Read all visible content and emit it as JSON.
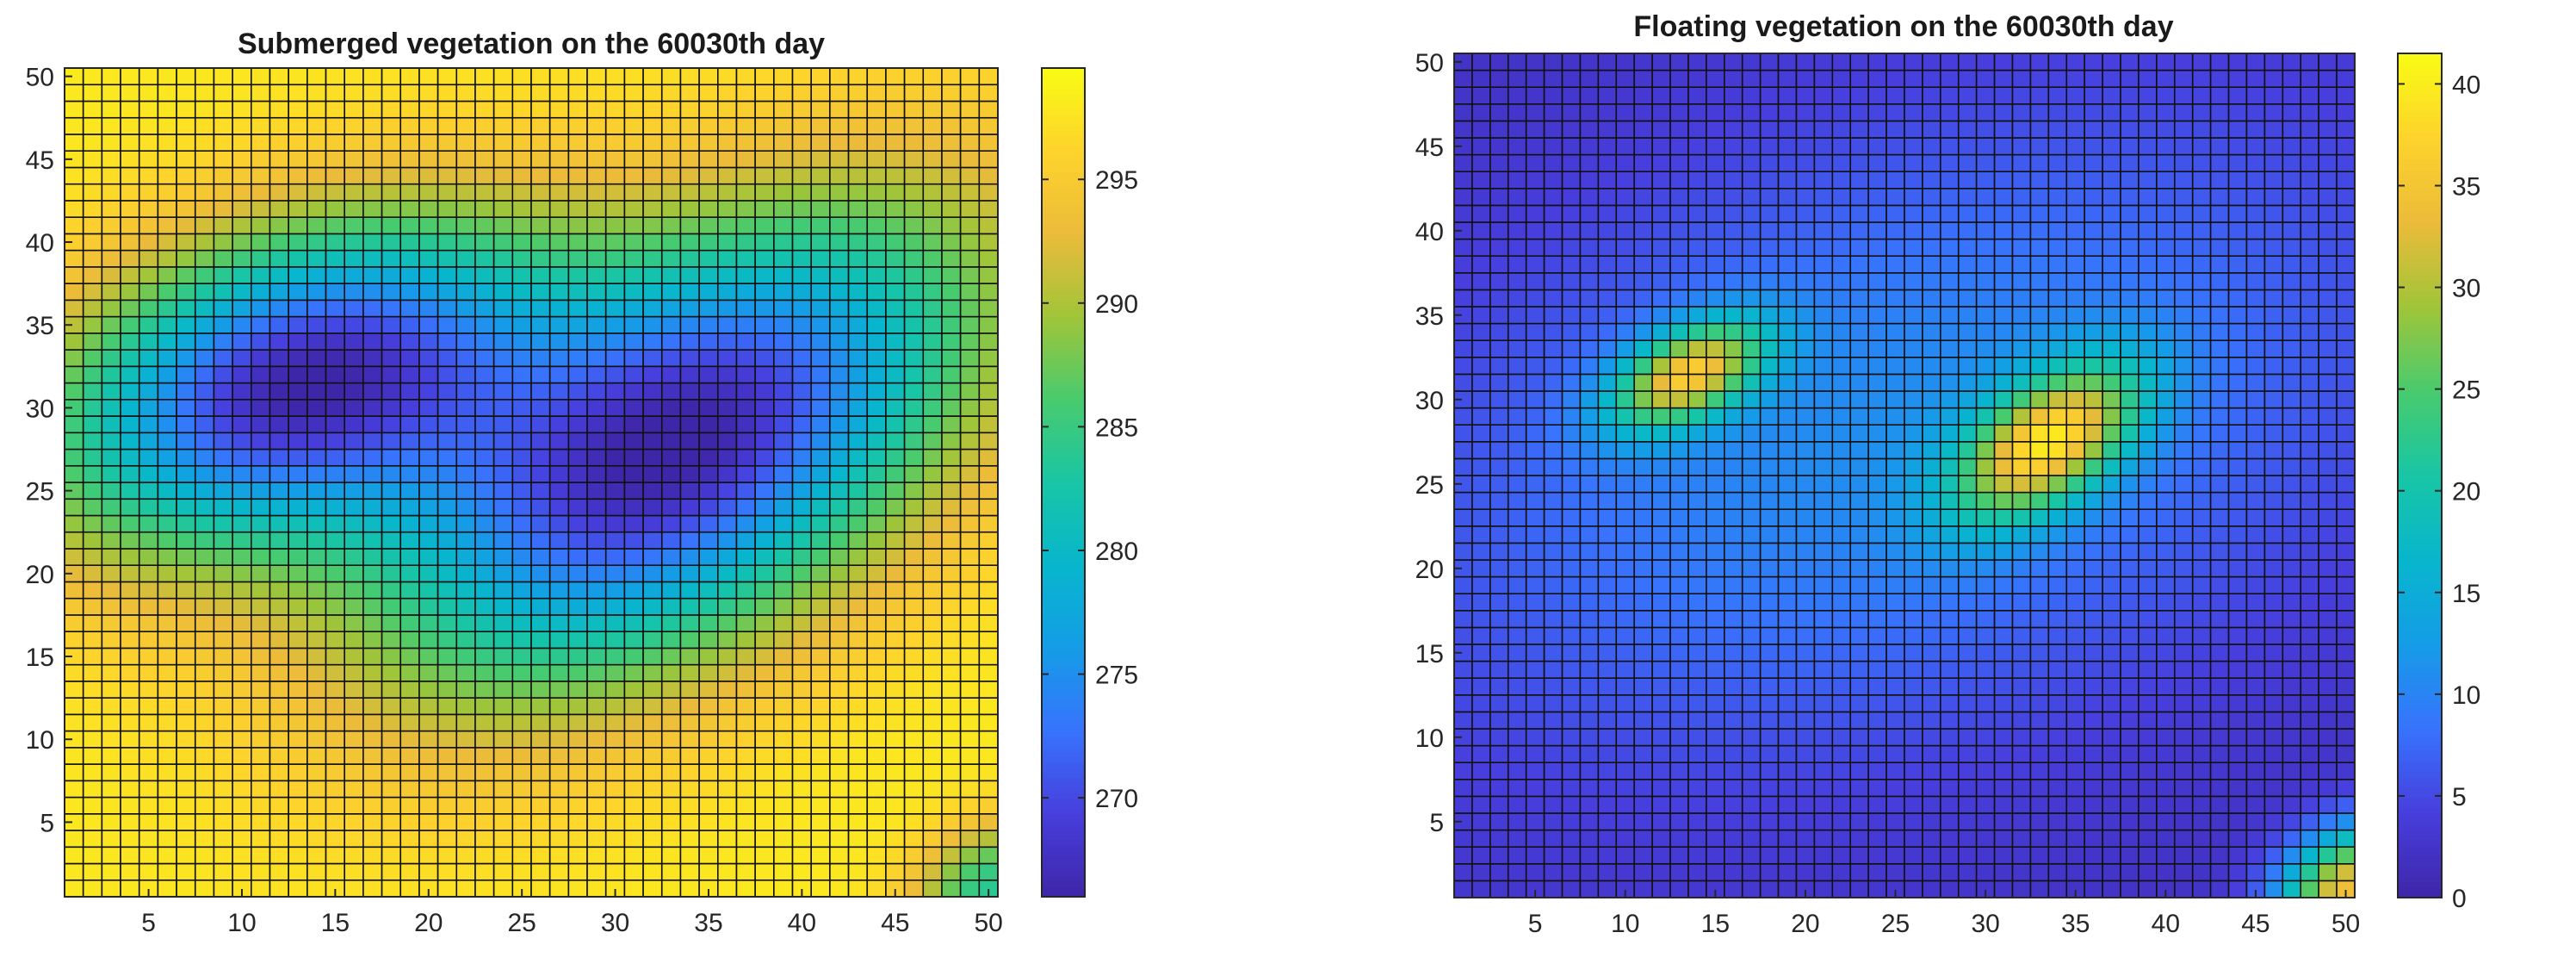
{
  "chart_data": [
    {
      "type": "heatmap",
      "title": "Submerged vegetation on the 60030th day",
      "xlabel": "",
      "ylabel": "",
      "xlim": [
        0.5,
        50.5
      ],
      "ylim": [
        0.5,
        50.5
      ],
      "grid_size": 50,
      "xticks": [
        5,
        10,
        15,
        20,
        25,
        30,
        35,
        40,
        45,
        50
      ],
      "yticks": [
        5,
        10,
        15,
        20,
        25,
        30,
        35,
        40,
        45,
        50
      ],
      "colorbar": {
        "min": 266,
        "max": 299.5,
        "ticks": [
          270,
          275,
          280,
          285,
          290,
          295
        ],
        "colormap": "parula"
      },
      "field_model": {
        "base": 298,
        "features": [
          {
            "cx": 13,
            "cy": 31.5,
            "amplitude": -31,
            "sigma_major": 9.5,
            "sigma_minor": 6.0,
            "angle_deg": 25
          },
          {
            "cx": 33.5,
            "cy": 27.5,
            "amplitude": -32,
            "sigma_major": 12.5,
            "sigma_minor": 7.0,
            "angle_deg": 40
          },
          {
            "cx": 50,
            "cy": 1,
            "amplitude": -14,
            "sigma_major": 3.2,
            "sigma_minor": 2.4,
            "angle_deg": 45
          }
        ],
        "clip": [
          266,
          299.5
        ]
      }
    },
    {
      "type": "heatmap",
      "title": "Floating vegetation on the 60030th day",
      "xlabel": "",
      "ylabel": "",
      "xlim": [
        0.5,
        50.5
      ],
      "ylim": [
        0.5,
        50.5
      ],
      "grid_size": 50,
      "xticks": [
        5,
        10,
        15,
        20,
        25,
        30,
        35,
        40,
        45,
        50
      ],
      "yticks": [
        5,
        10,
        15,
        20,
        25,
        30,
        35,
        40,
        45,
        50
      ],
      "colorbar": {
        "min": 0,
        "max": 41.5,
        "ticks": [
          0,
          5,
          10,
          15,
          20,
          25,
          30,
          35,
          40
        ],
        "colormap": "parula"
      },
      "field_model": {
        "base": 2,
        "features": [
          {
            "cx": 25,
            "cy": 28,
            "amplitude": 9,
            "sigma_major": 20,
            "sigma_minor": 12,
            "angle_deg": 20
          },
          {
            "cx": 13.5,
            "cy": 31.5,
            "amplitude": 28,
            "sigma_major": 3.3,
            "sigma_minor": 1.8,
            "angle_deg": 30
          },
          {
            "cx": 33.5,
            "cy": 27.5,
            "amplitude": 30,
            "sigma_major": 4.2,
            "sigma_minor": 2.3,
            "angle_deg": 40
          },
          {
            "cx": 50,
            "cy": 1,
            "amplitude": 32,
            "sigma_major": 3.0,
            "sigma_minor": 2.2,
            "angle_deg": 45
          }
        ],
        "clip": [
          0,
          41.5
        ]
      }
    }
  ]
}
